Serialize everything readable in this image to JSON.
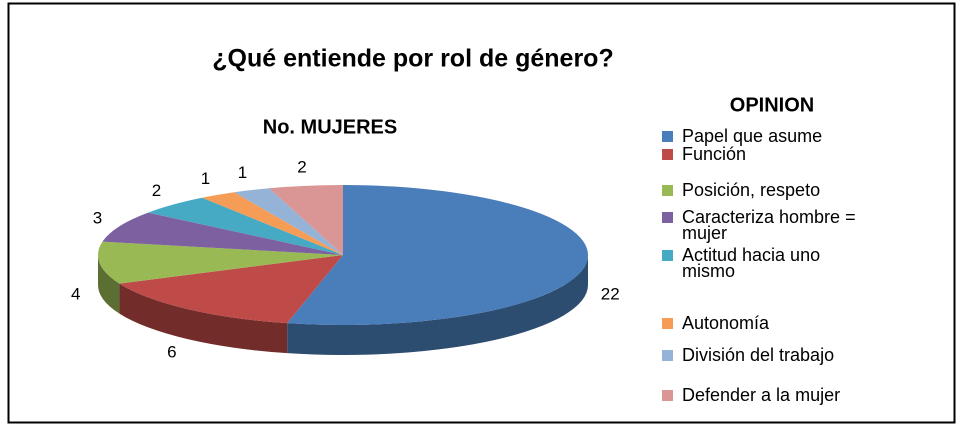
{
  "chart_data": {
    "type": "pie3d",
    "title": "¿Qué entiende por rol de género?",
    "subtitle": "No. MUJERES",
    "legend_title": "OPINION",
    "categories": [
      "Papel que asume",
      "Función",
      "Posición, respeto",
      "Caracteriza hombre = mujer",
      "Actitud hacia uno mismo",
      "Autonomía",
      "División del trabajo",
      "Defender a la mujer"
    ],
    "values": [
      22,
      6,
      4,
      3,
      2,
      1,
      1,
      2
    ],
    "colors": [
      "#4a7ebb",
      "#be4b48",
      "#98b954",
      "#7d60a0",
      "#46aac5",
      "#f59d56",
      "#95b3d7",
      "#d99694"
    ],
    "legend": "right"
  }
}
